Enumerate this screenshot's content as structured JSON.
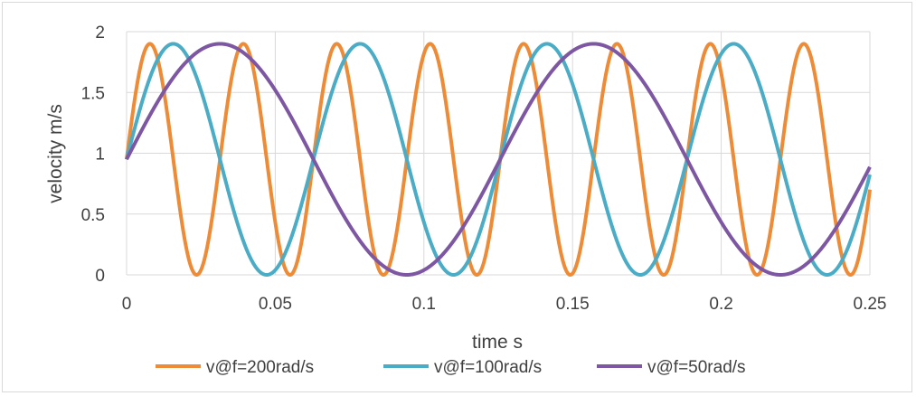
{
  "chart_data": {
    "type": "line",
    "title": "",
    "xlabel": "time s",
    "ylabel": "velocity m/s",
    "xlim": [
      0,
      0.25
    ],
    "ylim": [
      0,
      2
    ],
    "grid": true,
    "legend_position": "bottom",
    "x_ticks": [
      0,
      0.05,
      0.1,
      0.15,
      0.2,
      0.25
    ],
    "x_tick_labels": [
      "0",
      "0.05",
      "0.1",
      "0.15",
      "0.2",
      "0.25"
    ],
    "y_ticks": [
      0,
      0.5,
      1,
      1.5,
      2
    ],
    "y_tick_labels": [
      "0",
      "0.5",
      "1",
      "1.5",
      "2"
    ],
    "function": "v(t) = 0.95 + 0.95 * sin(w * t)",
    "series": [
      {
        "name": "v@f=200rad/s",
        "omega": 200,
        "offset": 0.95,
        "amplitude": 0.95,
        "color": "#ED8B37"
      },
      {
        "name": "v@f=100rad/s",
        "omega": 100,
        "offset": 0.95,
        "amplitude": 0.95,
        "color": "#4BACC6"
      },
      {
        "name": "v@f=50rad/s",
        "omega": 50,
        "offset": 0.95,
        "amplitude": 0.95,
        "color": "#7E57A2"
      }
    ]
  }
}
